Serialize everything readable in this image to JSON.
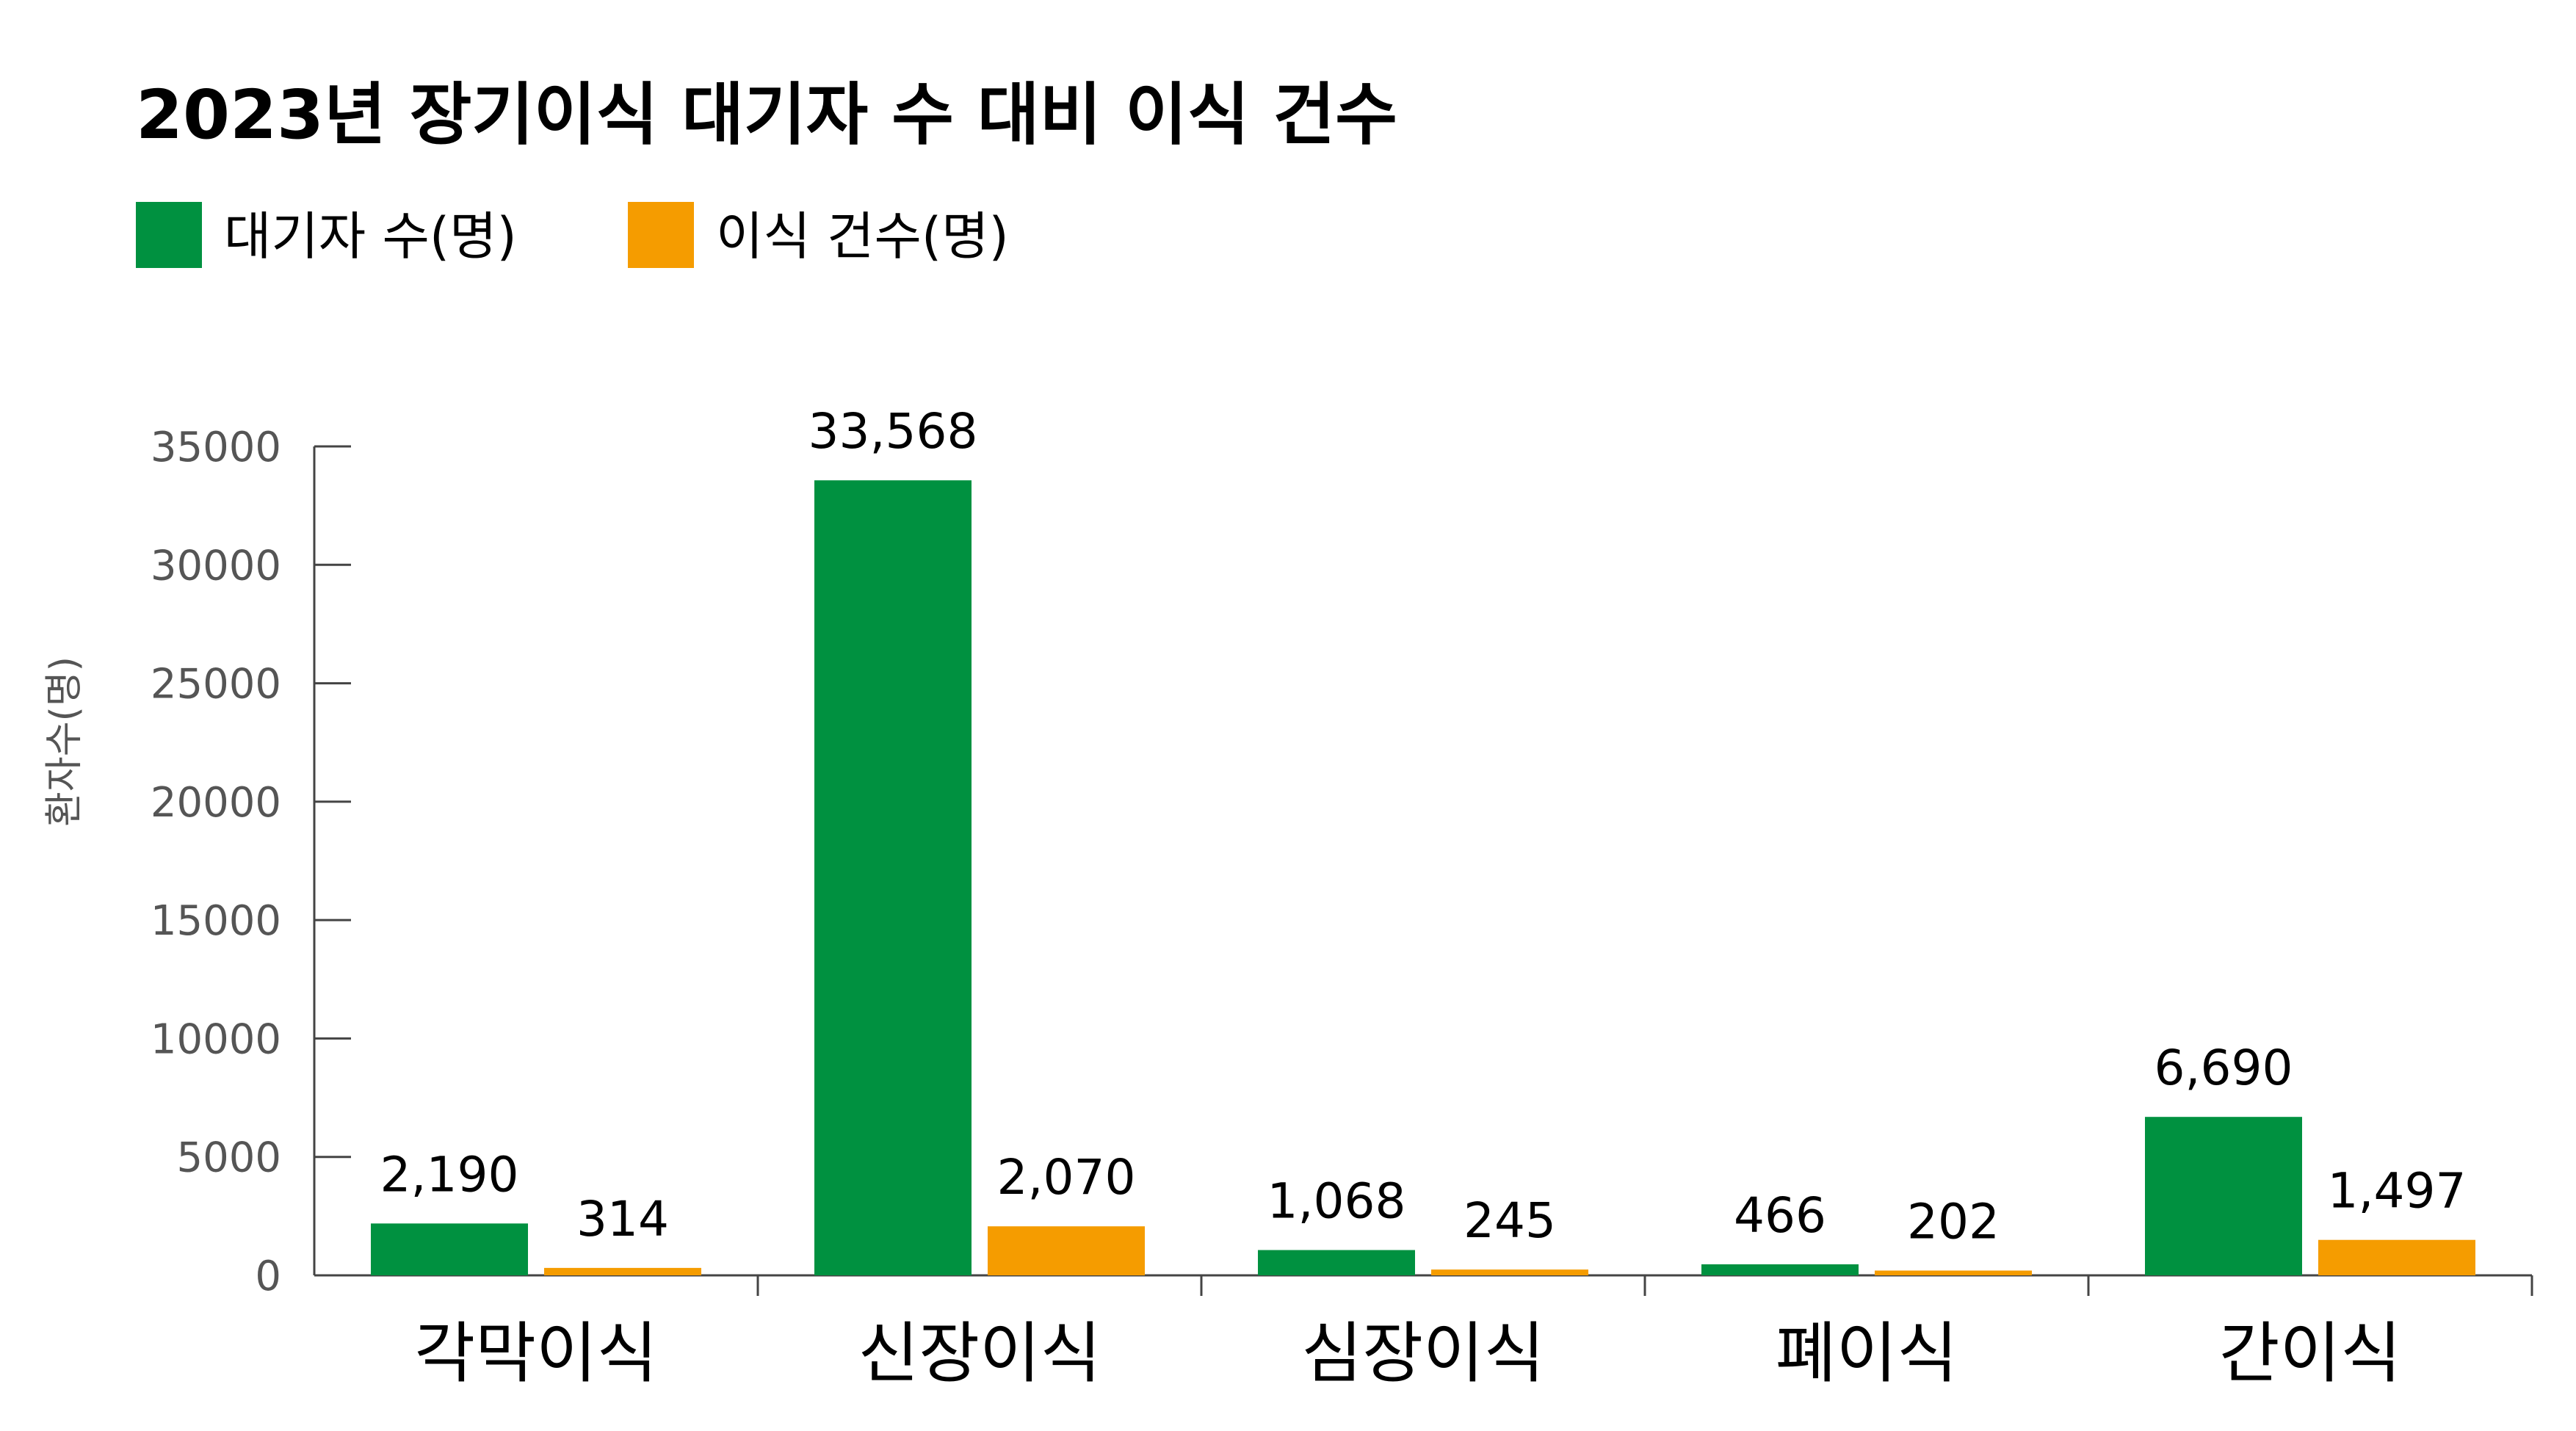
{
  "chart_data": {
    "type": "bar",
    "title": "2023년 장기이식 대기자 수 대비 이식 건수",
    "ylabel": "환자수(명)",
    "xlabel": "",
    "ylim": [
      0,
      35000
    ],
    "yticks": [
      "35000",
      "30000",
      "25000",
      "20000",
      "15000",
      "10000",
      "5000",
      "0"
    ],
    "categories": [
      "각막이식",
      "신장이식",
      "심장이식",
      "폐이식",
      "간이식"
    ],
    "series": [
      {
        "name": "대기자 수(명)",
        "color": "#009140",
        "values": [
          2190,
          33568,
          1068,
          466,
          6690
        ],
        "labels": [
          "2,190",
          "33,568",
          "1,068",
          "466",
          "6,690"
        ]
      },
      {
        "name": "이식 건수(명)",
        "color": "#f59c00",
        "values": [
          314,
          2070,
          245,
          202,
          1497
        ],
        "labels": [
          "314",
          "2,070",
          "245",
          "202",
          "1,497"
        ]
      }
    ],
    "legend": "top-left",
    "grid": false
  }
}
